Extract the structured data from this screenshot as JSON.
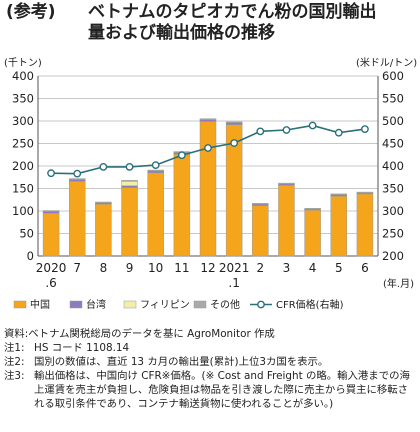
{
  "title": {
    "prefix": "(参考)",
    "line1": "ベトナムのタピオカでん粉の国別輸出",
    "line2": "量および輸出価格の推移"
  },
  "chart_data": {
    "type": "bar",
    "stacked": true,
    "left_axis_label": "(千トン)",
    "right_axis_label": "(米ドル/トン)",
    "x_unit_label": "(年.月)",
    "left_ylim": [
      0,
      400
    ],
    "left_ticks": [
      "0",
      "50",
      "100",
      "150",
      "200",
      "250",
      "300",
      "350",
      "400"
    ],
    "right_ylim": [
      200,
      600
    ],
    "right_ticks": [
      "200",
      "250",
      "300",
      "350",
      "400",
      "450",
      "500",
      "550",
      "600"
    ],
    "categories": [
      {
        "top": "2020",
        "bottom": ".6"
      },
      {
        "top": "7",
        "bottom": ""
      },
      {
        "top": "8",
        "bottom": ""
      },
      {
        "top": "9",
        "bottom": ""
      },
      {
        "top": "10",
        "bottom": ""
      },
      {
        "top": "11",
        "bottom": ""
      },
      {
        "top": "12",
        "bottom": ""
      },
      {
        "top": "2021",
        "bottom": ".1"
      },
      {
        "top": "2",
        "bottom": ""
      },
      {
        "top": "3",
        "bottom": ""
      },
      {
        "top": "4",
        "bottom": ""
      },
      {
        "top": "5",
        "bottom": ""
      },
      {
        "top": "6",
        "bottom": ""
      }
    ],
    "series": [
      {
        "name": "中国",
        "color": "#f5a51c",
        "values": [
          95,
          166,
          115,
          152,
          185,
          226,
          299,
          292,
          112,
          157,
          102,
          133,
          138
        ]
      },
      {
        "name": "台湾",
        "color": "#8d7bbf",
        "values": [
          4,
          4,
          3,
          4,
          4,
          4,
          4,
          4,
          3,
          3,
          2,
          3,
          2
        ]
      },
      {
        "name": "フィリピン",
        "color": "#f2f0a8",
        "values": [
          0,
          0,
          0,
          10,
          0,
          0,
          0,
          0,
          0,
          0,
          0,
          0,
          0
        ]
      },
      {
        "name": "その他",
        "color": "#a9a9a9",
        "values": [
          2,
          2,
          2,
          2,
          2,
          2,
          2,
          2,
          2,
          2,
          2,
          2,
          2
        ]
      }
    ],
    "line": {
      "name": "CFR価格(右軸)",
      "color": "#2a6f7a",
      "values": [
        384,
        383,
        398,
        398,
        402,
        424,
        440,
        451,
        477,
        480,
        490,
        474,
        482
      ]
    }
  },
  "notes": [
    {
      "label": "",
      "text": "資料:ベトナム関税総局のデータを基に AgroMonitor 作成"
    },
    {
      "label": "注1:",
      "text": "HS コード 1108.14"
    },
    {
      "label": "注2:",
      "text": "国別の数値は、直近 13 カ月の輸出量(累計)上位3カ国を表示。"
    },
    {
      "label": "注3:",
      "text": "輸出価格は、中国向け CFR※価格。(※ Cost and Freight の略。輸入港までの海上運賃を売主が負担し、危険負担は物品を引き渡した際に売主から買主に移転される取引条件であり、コンテナ輸送貨物に使われることが多い。)"
    }
  ]
}
